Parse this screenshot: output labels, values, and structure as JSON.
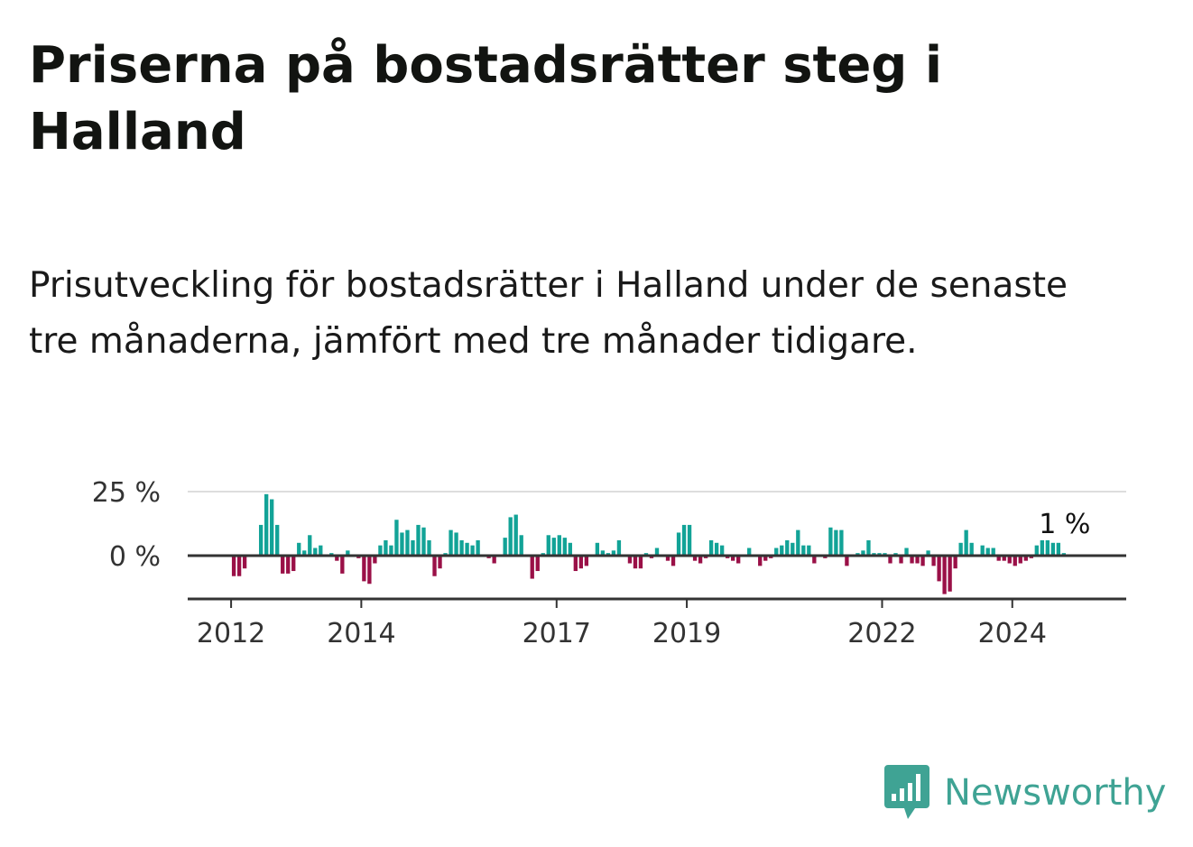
{
  "title": "Priserna på bostadsrätter steg i Halland",
  "subtitle": "Prisutveckling för bostadsrätter i Halland under de senaste tre månaderna, jämfört med tre månader tidigare.",
  "logo": {
    "text": "Newsworthy",
    "icon": "bar-chart-speech-bubble-icon"
  },
  "colors": {
    "positive": "#12a397",
    "negative": "#9a1047",
    "axis": "#333333",
    "grid": "#dddddd"
  },
  "chart_data": {
    "type": "bar",
    "x_start": "2011-01",
    "frequency": "monthly",
    "xlim": [
      "2011-05",
      "2025-10"
    ],
    "x_ticks": [
      "2012",
      "2014",
      "2017",
      "2019",
      "2022",
      "2024"
    ],
    "y_ticks": [
      "25 %",
      "0 %"
    ],
    "ylim": [
      -17,
      26
    ],
    "grid": true,
    "last_value_label": "1 %",
    "series": [
      {
        "values": [
          0,
          0,
          0,
          0,
          0,
          0,
          0,
          0,
          0,
          0,
          0,
          0,
          -8,
          -8,
          -5,
          0,
          0,
          12,
          24,
          22,
          12,
          -7,
          -7,
          -6,
          5,
          2,
          8,
          3,
          4,
          0,
          1,
          -2,
          -7,
          2,
          0,
          -1,
          -10,
          -11,
          -3,
          4,
          6,
          4,
          14,
          9,
          10,
          6,
          12,
          11,
          6,
          -8,
          -5,
          1,
          10,
          9,
          6,
          5,
          4,
          6,
          0,
          -1,
          -3,
          0,
          7,
          15,
          16,
          8,
          0,
          -9,
          -6,
          1,
          8,
          7,
          8,
          7,
          5,
          -6,
          -5,
          -4,
          0,
          5,
          2,
          1,
          2,
          6,
          0,
          -3,
          -5,
          -5,
          1,
          -1,
          3,
          0,
          -2,
          -4,
          9,
          12,
          12,
          -2,
          -3,
          -1,
          6,
          5,
          4,
          -1,
          -2,
          -3,
          0,
          3,
          0,
          -4,
          -2,
          -1,
          3,
          4,
          6,
          5,
          10,
          4,
          4,
          -3,
          0,
          -1,
          11,
          10,
          10,
          -4,
          0,
          1,
          2,
          6,
          1,
          1,
          1,
          -3,
          1,
          -3,
          3,
          -3,
          -3,
          -4,
          2,
          -4,
          -10,
          -15,
          -14,
          -5,
          5,
          10,
          5,
          0,
          4,
          3,
          3,
          -2,
          -2,
          -3,
          -4,
          -3,
          -2,
          -1,
          4,
          6,
          6,
          5,
          5,
          1
        ]
      }
    ]
  }
}
